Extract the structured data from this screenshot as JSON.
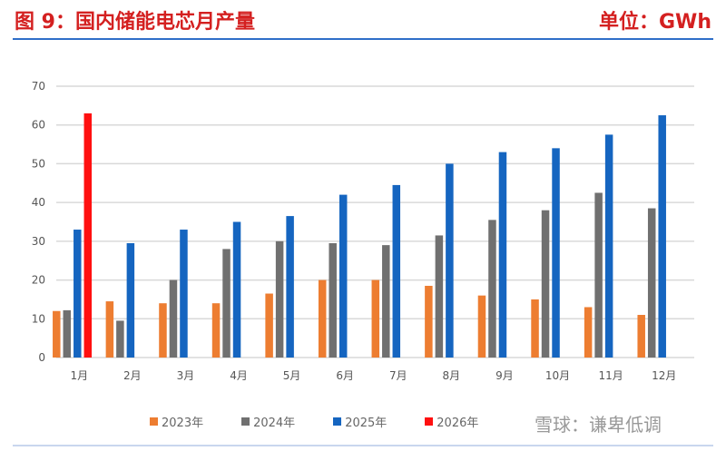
{
  "header": {
    "title": "图 9：国内储能电芯月产量",
    "unit": "单位：GWh"
  },
  "watermark": "雪球：谦卑低调",
  "chart_data": {
    "type": "bar",
    "title": "图 9：国内储能电芯月产量",
    "ylabel": "单位：GWh",
    "xlabel": "",
    "ylim": [
      0,
      70
    ],
    "yticks": [
      0,
      10,
      20,
      30,
      40,
      50,
      60,
      70
    ],
    "grid": true,
    "legend": "bottom",
    "categories": [
      "1月",
      "2月",
      "3月",
      "4月",
      "5月",
      "6月",
      "7月",
      "8月",
      "9月",
      "10月",
      "11月",
      "12月"
    ],
    "series": [
      {
        "name": "2023年",
        "color": "#ed7d31",
        "values": [
          12,
          14.5,
          14,
          14,
          16.5,
          20,
          20,
          18.5,
          16,
          15,
          13,
          11
        ]
      },
      {
        "name": "2024年",
        "color": "#707070",
        "values": [
          12.2,
          9.5,
          20,
          28,
          30,
          29.5,
          29,
          31.5,
          35.5,
          38,
          42.5,
          38.5
        ]
      },
      {
        "name": "2025年",
        "color": "#1565c0",
        "values": [
          33,
          29.5,
          33,
          35,
          36.5,
          42,
          44.5,
          50,
          53,
          54,
          57.5,
          62.5
        ]
      },
      {
        "name": "2026年",
        "color": "#ff1010",
        "values": [
          63,
          null,
          null,
          null,
          null,
          null,
          null,
          null,
          null,
          null,
          null,
          null
        ]
      }
    ]
  }
}
